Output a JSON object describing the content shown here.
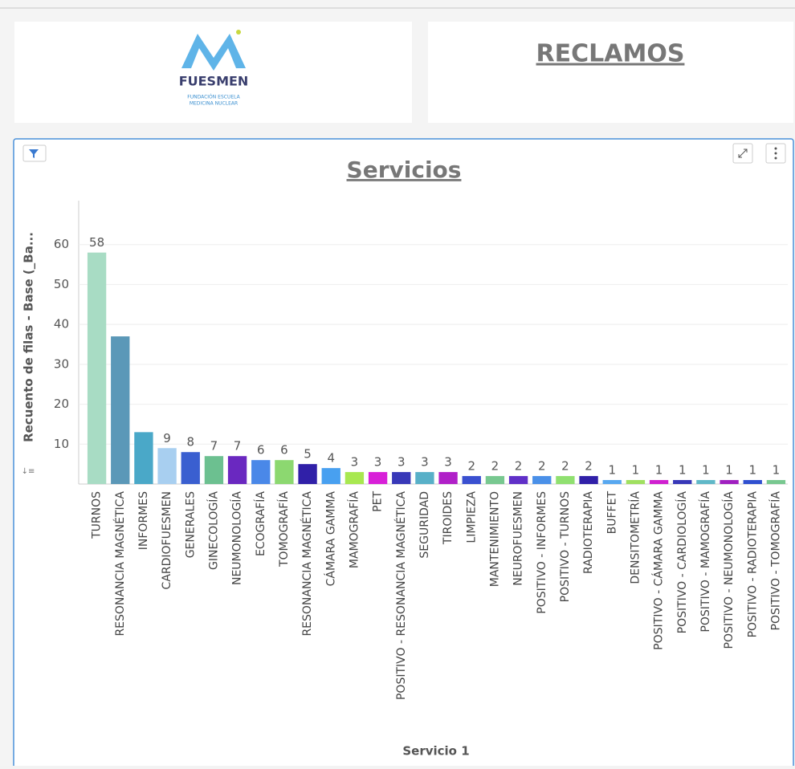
{
  "logo": {
    "name": "FUESMEN",
    "tagline": [
      "FUNDACIÓN ESCUELA",
      "MEDICINA NUCLEAR"
    ]
  },
  "header": {
    "title": "RECLAMOS"
  },
  "chart_data": {
    "type": "bar",
    "title": "Servicios",
    "x_label": "Servicio 1",
    "y_label": "Recuento de filas - Base (_Ba...",
    "categories": [
      "TURNOS",
      "RESONANCIA MAGNÉTICA",
      "INFORMES",
      "CARDIOFUESMEN",
      "GENERALES",
      "GINECOLOGÍA",
      "NEUMONOLOGÍA",
      "ECOGRAFÍA",
      "TOMOGRAFÍA",
      "RESONANCIA MAGNÉTICA",
      "CÁMARA GAMMA",
      "MAMOGRAFÍA",
      "PET",
      "POSITIVO - RESONANCIA MAGNÉTICA",
      "SEGURIDAD",
      "TIROIDES",
      "LIMPIEZA",
      "MANTENIMIENTO",
      "NEUROFUESMEN",
      "POSITIVO - INFORMES",
      "POSITIVO - TURNOS",
      "RADIOTERAPIA",
      "BUFFET",
      "DENSITOMETRÍA",
      "POSITIVO - CÁMARA GAMMA",
      "POSITIVO - CARDIOLOGÍA",
      "POSITIVO - MAMOGRAFÍA",
      "POSITIVO - NEUMONOLOGÍA",
      "POSITIVO - RADIOTERAPIA",
      "POSITIVO - TOMOGRAFÍA"
    ],
    "values": [
      58,
      37,
      13,
      9,
      8,
      7,
      7,
      6,
      6,
      5,
      4,
      3,
      3,
      3,
      3,
      3,
      2,
      2,
      2,
      2,
      2,
      2,
      1,
      1,
      1,
      1,
      1,
      1,
      1,
      1
    ],
    "value_labels": [
      "58",
      null,
      null,
      "9",
      "8",
      "7",
      "7",
      "6",
      "6",
      "5",
      "4",
      "3",
      "3",
      "3",
      "3",
      "3",
      "2",
      "2",
      "2",
      "2",
      "2",
      "2",
      "1",
      "1",
      "1",
      "1",
      "1",
      "1",
      "1",
      "1"
    ],
    "colors": [
      "#a8dcc4",
      "#5b98b8",
      "#4aa8c8",
      "#a8cff0",
      "#3a5fd0",
      "#6cc090",
      "#6a28c0",
      "#4a88e8",
      "#8cd870",
      "#3020a8",
      "#48a0f0",
      "#a8e850",
      "#d820d8",
      "#3838b8",
      "#58b0c8",
      "#b020c8",
      "#3a50d0",
      "#78c890",
      "#6030c8",
      "#4a90e8",
      "#90e070",
      "#3020a8",
      "#58a8f0",
      "#a0e060",
      "#d020d0",
      "#3838b8",
      "#60b8c8",
      "#a020c0",
      "#3050d0",
      "#78c890"
    ],
    "ylim": [
      0,
      71
    ],
    "yticks": [
      10,
      20,
      30,
      40,
      50,
      60
    ],
    "grid": true
  }
}
